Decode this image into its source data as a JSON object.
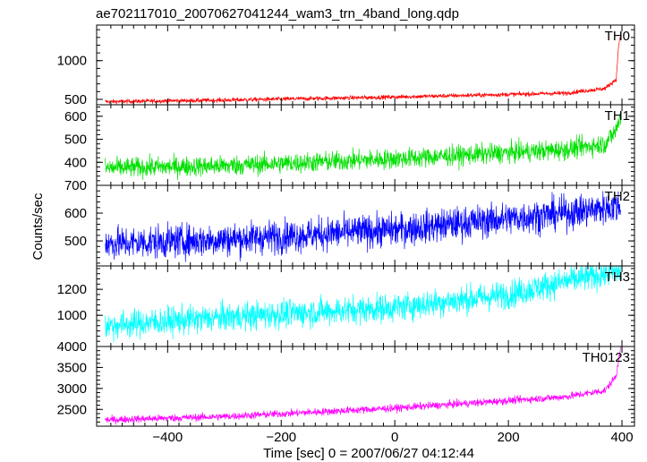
{
  "chart_data": {
    "type": "line",
    "title": "ae702117010_20070627041244_wam3_trn_4band_long.qdp",
    "xlabel": "Time [sec] 0 = 2007/06/27 04:12:44",
    "ylabel": "Counts/sec",
    "xlim": [
      -525,
      422
    ],
    "x_ticks": [
      -400,
      -200,
      0,
      200,
      400
    ],
    "x_tick_labels": [
      "−400",
      "−200",
      "0",
      "200",
      "400"
    ],
    "x_data_range": [
      -510,
      398
    ],
    "grid": false,
    "legend": "none",
    "panels": [
      {
        "name": "TH0",
        "color": "#ff0000",
        "ylim": [
          430,
          1460
        ],
        "y_ticks": [
          500,
          1000
        ],
        "y_tick_labels": [
          "500",
          "1000"
        ],
        "trend": [
          [
            -510,
            470
          ],
          [
            -300,
            490
          ],
          [
            0,
            530
          ],
          [
            300,
            580
          ],
          [
            370,
            640
          ],
          [
            390,
            760
          ],
          [
            394,
            1200
          ],
          [
            398,
            1330
          ]
        ],
        "noise": 14
      },
      {
        "name": "TH1",
        "color": "#00e000",
        "ylim": [
          300,
          650
        ],
        "y_ticks": [
          400,
          500,
          600
        ],
        "y_tick_labels": [
          "400",
          "500",
          "600"
        ],
        "trend": [
          [
            -510,
            375
          ],
          [
            -300,
            385
          ],
          [
            0,
            415
          ],
          [
            300,
            455
          ],
          [
            370,
            480
          ],
          [
            390,
            540
          ],
          [
            398,
            610
          ]
        ],
        "noise": 22
      },
      {
        "name": "TH2",
        "color": "#0000ff",
        "ylim": [
          410,
          700
        ],
        "y_ticks": [
          500,
          600,
          700
        ],
        "y_tick_labels": [
          "500",
          "600",
          "700"
        ],
        "trend": [
          [
            -510,
            490
          ],
          [
            -300,
            505
          ],
          [
            0,
            540
          ],
          [
            300,
            600
          ],
          [
            398,
            625
          ]
        ],
        "noise": 30
      },
      {
        "name": "TH3",
        "color": "#00ffff",
        "ylim": [
          760,
          1380
        ],
        "y_ticks": [
          1000,
          1200
        ],
        "y_tick_labels": [
          "1000",
          "1200"
        ],
        "trend": [
          [
            -510,
            920
          ],
          [
            -300,
            985
          ],
          [
            0,
            1060
          ],
          [
            200,
            1160
          ],
          [
            300,
            1260
          ],
          [
            398,
            1340
          ]
        ],
        "noise": 55
      },
      {
        "name": "TH0123",
        "color": "#ff00ff",
        "ylim": [
          2100,
          4000
        ],
        "y_ticks": [
          2500,
          3000,
          3500,
          4000
        ],
        "y_tick_labels": [
          "2500",
          "3000",
          "3500",
          "4000"
        ],
        "trend": [
          [
            -510,
            2250
          ],
          [
            -300,
            2330
          ],
          [
            0,
            2530
          ],
          [
            300,
            2800
          ],
          [
            370,
            2950
          ],
          [
            390,
            3300
          ],
          [
            395,
            3800
          ],
          [
            398,
            3950
          ]
        ],
        "noise": 45
      }
    ]
  }
}
